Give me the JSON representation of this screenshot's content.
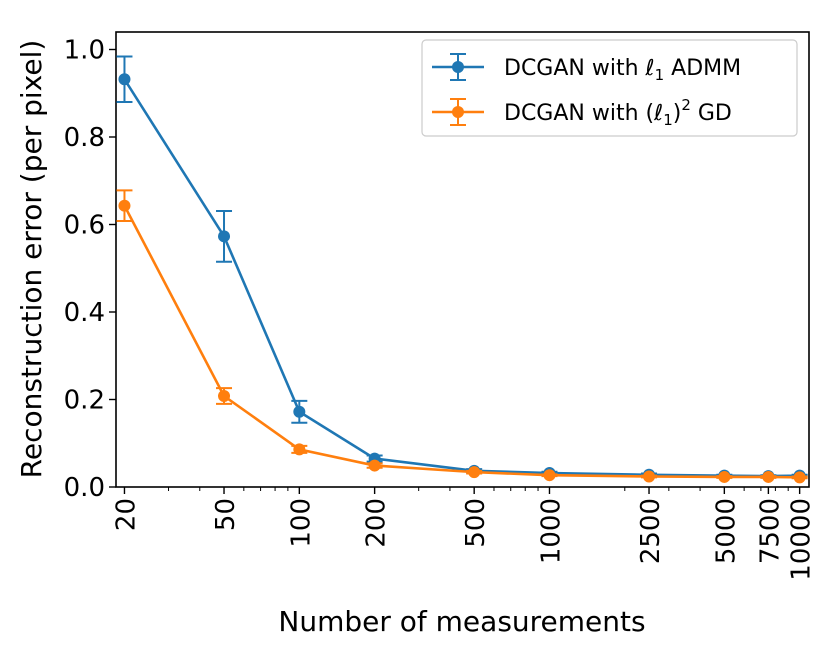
{
  "chart_data": {
    "type": "line",
    "x_scale": "log",
    "xlabel": "Number of measurements",
    "ylabel": "Reconstruction error (per pixel)",
    "xlim": [
      18.5,
      10900
    ],
    "ylim": [
      0.0,
      1.04
    ],
    "x": [
      20,
      50,
      100,
      200,
      500,
      1000,
      2500,
      5000,
      7500,
      10000
    ],
    "x_tick_labels": [
      "20",
      "50",
      "100",
      "200",
      "500",
      "1000",
      "2500",
      "5000",
      "7500",
      "10000"
    ],
    "y_ticks": [
      0.0,
      0.2,
      0.4,
      0.6,
      0.8,
      1.0
    ],
    "y_tick_labels": [
      "0.0",
      "0.2",
      "0.4",
      "0.6",
      "0.8",
      "1.0"
    ],
    "legend_position": "top-right",
    "series": [
      {
        "name": "DCGAN with ℓ1 ADMM",
        "legend_main": "DCGAN with ",
        "legend_ell": "ℓ",
        "legend_sub": "1",
        "legend_tail": " ADMM",
        "color": "#1f77b4",
        "values": [
          0.932,
          0.573,
          0.172,
          0.065,
          0.037,
          0.032,
          0.028,
          0.026,
          0.025,
          0.026
        ],
        "errors": [
          0.052,
          0.058,
          0.025,
          0.007,
          0.004,
          0.003,
          0.003,
          0.002,
          0.002,
          0.002
        ]
      },
      {
        "name": "DCGAN with (ℓ1)² GD",
        "legend_main": "DCGAN with (",
        "legend_ell": "ℓ",
        "legend_sub": "1",
        "legend_close": ")",
        "legend_sup": "2",
        "legend_tail": " GD",
        "color": "#ff7f0e",
        "values": [
          0.643,
          0.208,
          0.086,
          0.049,
          0.034,
          0.027,
          0.024,
          0.023,
          0.023,
          0.022
        ],
        "errors": [
          0.035,
          0.018,
          0.008,
          0.005,
          0.003,
          0.002,
          0.002,
          0.002,
          0.002,
          0.002
        ]
      }
    ]
  }
}
